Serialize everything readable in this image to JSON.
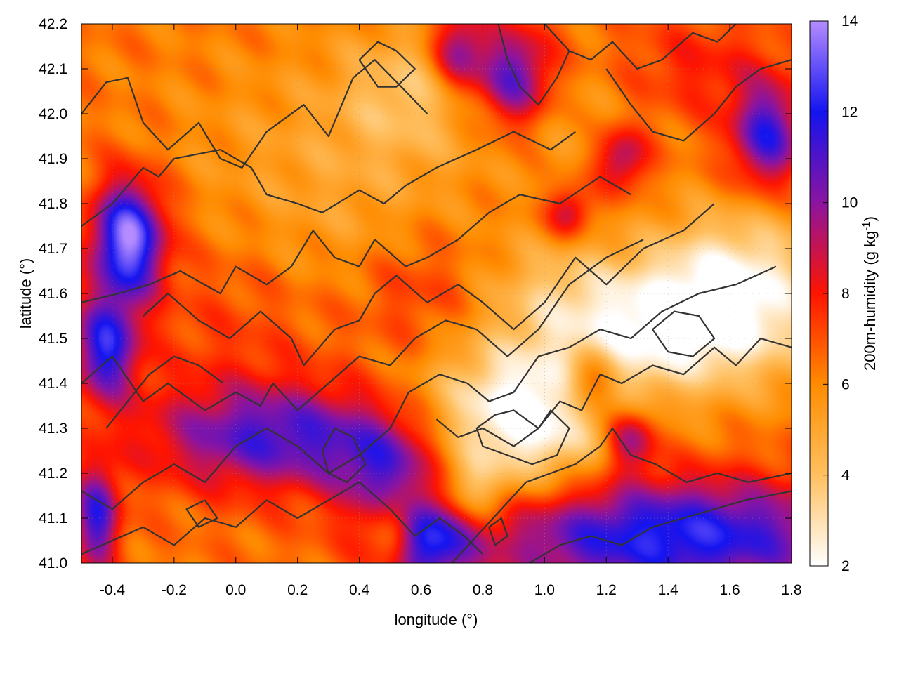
{
  "chart_data": {
    "type": "heatmap",
    "xlabel": "longitude (°)",
    "ylabel": "latitude (°)",
    "colorbar_label": "200m-humidity (g kg",
    "colorbar_label_sup": "-1",
    "colorbar_label_tail": ")",
    "xlim": [
      -0.5,
      1.8
    ],
    "ylim": [
      41.0,
      42.2
    ],
    "clim": [
      2,
      14
    ],
    "x_ticks": [
      -0.4,
      -0.2,
      0.0,
      0.2,
      0.4,
      0.6,
      0.8,
      1.0,
      1.2,
      1.4,
      1.6,
      1.8
    ],
    "x_tick_labels": [
      "-0.4",
      "-0.2",
      "0.0",
      "0.2",
      "0.4",
      "0.6",
      "0.8",
      "1.0",
      "1.2",
      "1.4",
      "1.6",
      "1.8"
    ],
    "y_ticks": [
      41.0,
      41.1,
      41.2,
      41.3,
      41.4,
      41.5,
      41.6,
      41.7,
      41.8,
      41.9,
      42.0,
      42.1,
      42.2
    ],
    "y_tick_labels": [
      "41.0",
      "41.1",
      "41.2",
      "41.3",
      "41.4",
      "41.5",
      "41.6",
      "41.7",
      "41.8",
      "41.9",
      "42.0",
      "42.1",
      "42.2"
    ],
    "c_ticks": [
      2,
      4,
      6,
      8,
      10,
      12,
      14
    ],
    "c_tick_labels": [
      "2",
      "4",
      "6",
      "8",
      "10",
      "12",
      "14"
    ],
    "colormap": [
      {
        "v": 2,
        "color": "#ffffff"
      },
      {
        "v": 4,
        "color": "#ffc060"
      },
      {
        "v": 6,
        "color": "#ff8c00"
      },
      {
        "v": 8,
        "color": "#ff1400"
      },
      {
        "v": 10,
        "color": "#8c14a0"
      },
      {
        "v": 12,
        "color": "#1414f0"
      },
      {
        "v": 14,
        "color": "#b48cff"
      }
    ],
    "grid": true,
    "contour_color": "#333333",
    "humidity_field": {
      "base": 6.4,
      "features": [
        {
          "lon": -0.35,
          "lat": 41.72,
          "sx": 0.08,
          "sy": 0.09,
          "amp": 7.5
        },
        {
          "lon": -0.42,
          "lat": 41.48,
          "sx": 0.07,
          "sy": 0.08,
          "amp": 5.5
        },
        {
          "lon": -0.45,
          "lat": 41.1,
          "sx": 0.05,
          "sy": 0.08,
          "amp": 5.0
        },
        {
          "lon": 0.15,
          "lat": 41.28,
          "sx": 0.3,
          "sy": 0.08,
          "amp": 4.5
        },
        {
          "lon": 0.5,
          "lat": 41.2,
          "sx": 0.12,
          "sy": 0.08,
          "amp": 3.5
        },
        {
          "lon": 0.62,
          "lat": 41.05,
          "sx": 0.1,
          "sy": 0.07,
          "amp": 5.0
        },
        {
          "lon": 1.4,
          "lat": 41.06,
          "sx": 0.45,
          "sy": 0.09,
          "amp": 6.0
        },
        {
          "lon": 1.28,
          "lat": 41.28,
          "sx": 0.06,
          "sy": 0.05,
          "amp": 4.0
        },
        {
          "lon": 1.15,
          "lat": 41.4,
          "sx": 0.06,
          "sy": 0.05,
          "amp": 3.5
        },
        {
          "lon": 0.9,
          "lat": 42.08,
          "sx": 0.09,
          "sy": 0.08,
          "amp": 5.0
        },
        {
          "lon": 0.72,
          "lat": 42.14,
          "sx": 0.06,
          "sy": 0.06,
          "amp": 4.0
        },
        {
          "lon": 1.72,
          "lat": 41.95,
          "sx": 0.08,
          "sy": 0.08,
          "amp": 5.0
        },
        {
          "lon": 1.25,
          "lat": 41.9,
          "sx": 0.06,
          "sy": 0.05,
          "amp": 3.5
        },
        {
          "lon": 1.08,
          "lat": 41.78,
          "sx": 0.05,
          "sy": 0.04,
          "amp": 3.0
        },
        {
          "lon": 0.92,
          "lat": 41.32,
          "sx": 0.22,
          "sy": 0.12,
          "amp": -5.0
        },
        {
          "lon": 1.45,
          "lat": 41.52,
          "sx": 0.3,
          "sy": 0.1,
          "amp": -4.5
        },
        {
          "lon": 1.62,
          "lat": 41.66,
          "sx": 0.2,
          "sy": 0.1,
          "amp": -3.0
        },
        {
          "lon": 0.52,
          "lat": 41.08,
          "sx": 0.05,
          "sy": 0.06,
          "amp": -3.5
        },
        {
          "lon": 0.75,
          "lat": 41.15,
          "sx": 0.08,
          "sy": 0.05,
          "amp": -2.5
        },
        {
          "lon": 0.0,
          "lat": 41.55,
          "sx": 0.25,
          "sy": 0.2,
          "amp": 1.2
        },
        {
          "lon": 0.25,
          "lat": 41.82,
          "sx": 0.35,
          "sy": 0.2,
          "amp": -1.5
        },
        {
          "lon": 0.55,
          "lat": 42.05,
          "sx": 0.15,
          "sy": 0.1,
          "amp": -2.0
        },
        {
          "lon": 1.05,
          "lat": 42.0,
          "sx": 0.2,
          "sy": 0.1,
          "amp": -1.0
        },
        {
          "lon": 1.05,
          "lat": 41.62,
          "sx": 0.18,
          "sy": 0.08,
          "amp": -1.5
        },
        {
          "lon": 0.6,
          "lat": 41.6,
          "sx": 0.15,
          "sy": 0.1,
          "amp": 1.5
        },
        {
          "lon": 1.5,
          "lat": 42.1,
          "sx": 0.2,
          "sy": 0.08,
          "amp": 1.5
        }
      ]
    },
    "terrain_contours": [
      [
        [
          -0.5,
          42.0
        ],
        [
          -0.42,
          42.07
        ],
        [
          -0.35,
          42.08
        ],
        [
          -0.3,
          41.98
        ],
        [
          -0.22,
          41.92
        ],
        [
          -0.12,
          41.98
        ],
        [
          -0.05,
          41.9
        ],
        [
          0.02,
          41.88
        ],
        [
          0.1,
          41.96
        ],
        [
          0.22,
          42.02
        ],
        [
          0.3,
          41.95
        ],
        [
          0.38,
          42.08
        ],
        [
          0.45,
          42.12
        ],
        [
          0.55,
          42.05
        ],
        [
          0.62,
          42.0
        ]
      ],
      [
        [
          -0.5,
          41.75
        ],
        [
          -0.4,
          41.8
        ],
        [
          -0.3,
          41.88
        ],
        [
          -0.25,
          41.86
        ],
        [
          -0.2,
          41.9
        ],
        [
          -0.05,
          41.92
        ],
        [
          0.05,
          41.88
        ],
        [
          0.1,
          41.82
        ],
        [
          0.2,
          41.8
        ],
        [
          0.28,
          41.78
        ],
        [
          0.4,
          41.83
        ],
        [
          0.48,
          41.8
        ],
        [
          0.55,
          41.84
        ],
        [
          0.65,
          41.88
        ],
        [
          0.78,
          41.92
        ],
        [
          0.9,
          41.96
        ],
        [
          1.02,
          41.92
        ],
        [
          1.1,
          41.96
        ]
      ],
      [
        [
          -0.5,
          41.58
        ],
        [
          -0.38,
          41.6
        ],
        [
          -0.28,
          41.62
        ],
        [
          -0.18,
          41.65
        ],
        [
          -0.05,
          41.6
        ],
        [
          0.0,
          41.66
        ],
        [
          0.1,
          41.62
        ],
        [
          0.18,
          41.66
        ],
        [
          0.25,
          41.74
        ],
        [
          0.32,
          41.68
        ],
        [
          0.4,
          41.66
        ],
        [
          0.45,
          41.72
        ],
        [
          0.55,
          41.66
        ],
        [
          0.62,
          41.68
        ],
        [
          0.72,
          41.72
        ],
        [
          0.82,
          41.78
        ],
        [
          0.92,
          41.82
        ],
        [
          1.05,
          41.8
        ],
        [
          1.18,
          41.86
        ],
        [
          1.28,
          41.82
        ]
      ],
      [
        [
          -0.3,
          41.55
        ],
        [
          -0.22,
          41.6
        ],
        [
          -0.12,
          41.54
        ],
        [
          -0.02,
          41.5
        ],
        [
          0.08,
          41.56
        ],
        [
          0.18,
          41.5
        ],
        [
          0.22,
          41.44
        ],
        [
          0.32,
          41.52
        ],
        [
          0.4,
          41.54
        ],
        [
          0.45,
          41.6
        ],
        [
          0.52,
          41.64
        ],
        [
          0.62,
          41.58
        ],
        [
          0.72,
          41.62
        ],
        [
          0.8,
          41.58
        ],
        [
          0.9,
          41.52
        ],
        [
          1.0,
          41.58
        ],
        [
          1.1,
          41.68
        ],
        [
          1.2,
          41.62
        ],
        [
          1.32,
          41.7
        ],
        [
          1.45,
          41.74
        ],
        [
          1.55,
          41.8
        ]
      ],
      [
        [
          -0.5,
          41.4
        ],
        [
          -0.4,
          41.46
        ],
        [
          -0.3,
          41.36
        ],
        [
          -0.22,
          41.4
        ],
        [
          -0.1,
          41.34
        ],
        [
          0.0,
          41.38
        ],
        [
          0.08,
          41.35
        ],
        [
          0.12,
          41.4
        ],
        [
          0.2,
          41.34
        ],
        [
          0.3,
          41.4
        ],
        [
          0.4,
          41.46
        ],
        [
          0.5,
          41.44
        ],
        [
          0.58,
          41.5
        ],
        [
          0.68,
          41.54
        ],
        [
          0.78,
          41.52
        ],
        [
          0.88,
          41.46
        ],
        [
          0.98,
          41.52
        ],
        [
          1.08,
          41.62
        ],
        [
          1.2,
          41.68
        ],
        [
          1.32,
          41.72
        ]
      ],
      [
        [
          -0.5,
          41.16
        ],
        [
          -0.4,
          41.12
        ],
        [
          -0.3,
          41.18
        ],
        [
          -0.2,
          41.22
        ],
        [
          -0.1,
          41.18
        ],
        [
          0.0,
          41.26
        ],
        [
          0.1,
          41.3
        ],
        [
          0.2,
          41.26
        ],
        [
          0.3,
          41.2
        ],
        [
          0.4,
          41.24
        ],
        [
          0.5,
          41.3
        ],
        [
          0.56,
          41.38
        ],
        [
          0.66,
          41.42
        ],
        [
          0.75,
          41.4
        ],
        [
          0.82,
          41.36
        ],
        [
          0.9,
          41.38
        ],
        [
          0.98,
          41.46
        ],
        [
          1.08,
          41.48
        ],
        [
          1.18,
          41.52
        ],
        [
          1.28,
          41.5
        ],
        [
          1.38,
          41.56
        ],
        [
          1.5,
          41.6
        ],
        [
          1.62,
          41.62
        ],
        [
          1.75,
          41.66
        ]
      ],
      [
        [
          0.65,
          41.32
        ],
        [
          0.72,
          41.28
        ],
        [
          0.8,
          41.3
        ],
        [
          0.9,
          41.26
        ],
        [
          0.98,
          41.3
        ],
        [
          1.05,
          41.36
        ],
        [
          1.12,
          41.34
        ],
        [
          1.18,
          41.42
        ],
        [
          1.25,
          41.4
        ],
        [
          1.35,
          41.44
        ],
        [
          1.45,
          41.42
        ],
        [
          1.55,
          41.48
        ],
        [
          1.62,
          41.44
        ],
        [
          1.7,
          41.5
        ],
        [
          1.8,
          41.48
        ]
      ],
      [
        [
          0.78,
          41.3
        ],
        [
          0.84,
          41.33
        ],
        [
          0.9,
          41.34
        ],
        [
          0.98,
          41.3
        ],
        [
          1.02,
          41.34
        ],
        [
          1.08,
          41.3
        ],
        [
          1.04,
          41.24
        ],
        [
          0.96,
          41.22
        ],
        [
          0.88,
          41.24
        ],
        [
          0.8,
          41.26
        ],
        [
          0.78,
          41.3
        ]
      ],
      [
        [
          -0.5,
          41.02
        ],
        [
          -0.4,
          41.05
        ],
        [
          -0.3,
          41.08
        ],
        [
          -0.2,
          41.04
        ],
        [
          -0.1,
          41.1
        ],
        [
          0.0,
          41.08
        ],
        [
          0.1,
          41.14
        ],
        [
          0.2,
          41.1
        ],
        [
          0.3,
          41.14
        ],
        [
          0.4,
          41.18
        ],
        [
          0.5,
          41.12
        ],
        [
          0.58,
          41.06
        ],
        [
          0.66,
          41.1
        ],
        [
          0.74,
          41.06
        ],
        [
          0.8,
          41.02
        ]
      ],
      [
        [
          0.7,
          41.0
        ],
        [
          0.78,
          41.06
        ],
        [
          0.86,
          41.12
        ],
        [
          0.94,
          41.18
        ],
        [
          1.02,
          41.2
        ],
        [
          1.1,
          41.22
        ],
        [
          1.18,
          41.26
        ],
        [
          1.22,
          41.3
        ],
        [
          1.28,
          41.24
        ],
        [
          1.36,
          41.22
        ],
        [
          1.46,
          41.18
        ],
        [
          1.56,
          41.2
        ],
        [
          1.66,
          41.18
        ],
        [
          1.8,
          41.2
        ]
      ],
      [
        [
          0.95,
          41.0
        ],
        [
          1.05,
          41.04
        ],
        [
          1.15,
          41.06
        ],
        [
          1.25,
          41.04
        ],
        [
          1.35,
          41.08
        ],
        [
          1.45,
          41.1
        ],
        [
          1.55,
          41.12
        ],
        [
          1.65,
          41.14
        ],
        [
          1.8,
          41.16
        ]
      ],
      [
        [
          -0.42,
          41.3
        ],
        [
          -0.35,
          41.36
        ],
        [
          -0.28,
          41.42
        ],
        [
          -0.2,
          41.46
        ],
        [
          -0.12,
          41.44
        ],
        [
          -0.04,
          41.4
        ]
      ],
      [
        [
          0.28,
          41.25
        ],
        [
          0.32,
          41.3
        ],
        [
          0.38,
          41.28
        ],
        [
          0.42,
          41.22
        ],
        [
          0.36,
          41.18
        ],
        [
          0.3,
          41.2
        ],
        [
          0.28,
          41.25
        ]
      ],
      [
        [
          0.4,
          42.12
        ],
        [
          0.46,
          42.16
        ],
        [
          0.52,
          42.14
        ],
        [
          0.58,
          42.1
        ],
        [
          0.52,
          42.06
        ],
        [
          0.46,
          42.06
        ],
        [
          0.4,
          42.12
        ]
      ],
      [
        [
          1.35,
          41.52
        ],
        [
          1.42,
          41.56
        ],
        [
          1.5,
          41.55
        ],
        [
          1.55,
          41.5
        ],
        [
          1.48,
          41.46
        ],
        [
          1.4,
          41.47
        ],
        [
          1.35,
          41.52
        ]
      ],
      [
        [
          1.2,
          42.1
        ],
        [
          1.28,
          42.02
        ],
        [
          1.35,
          41.96
        ],
        [
          1.45,
          41.94
        ],
        [
          1.55,
          42.0
        ],
        [
          1.62,
          42.06
        ],
        [
          1.7,
          42.1
        ],
        [
          1.8,
          42.12
        ]
      ],
      [
        [
          1.0,
          42.2
        ],
        [
          1.08,
          42.14
        ],
        [
          1.15,
          42.12
        ],
        [
          1.22,
          42.16
        ],
        [
          1.3,
          42.1
        ],
        [
          1.38,
          42.12
        ],
        [
          1.48,
          42.18
        ],
        [
          1.56,
          42.16
        ],
        [
          1.62,
          42.2
        ]
      ],
      [
        [
          0.85,
          42.2
        ],
        [
          0.88,
          42.12
        ],
        [
          0.92,
          42.06
        ],
        [
          0.98,
          42.02
        ],
        [
          1.04,
          42.08
        ],
        [
          1.08,
          42.14
        ]
      ],
      [
        [
          -0.1,
          41.14
        ],
        [
          -0.06,
          41.1
        ],
        [
          -0.12,
          41.08
        ],
        [
          -0.16,
          41.12
        ],
        [
          -0.1,
          41.14
        ]
      ],
      [
        [
          0.82,
          41.08
        ],
        [
          0.86,
          41.1
        ],
        [
          0.88,
          41.06
        ],
        [
          0.84,
          41.04
        ],
        [
          0.82,
          41.08
        ]
      ]
    ]
  }
}
